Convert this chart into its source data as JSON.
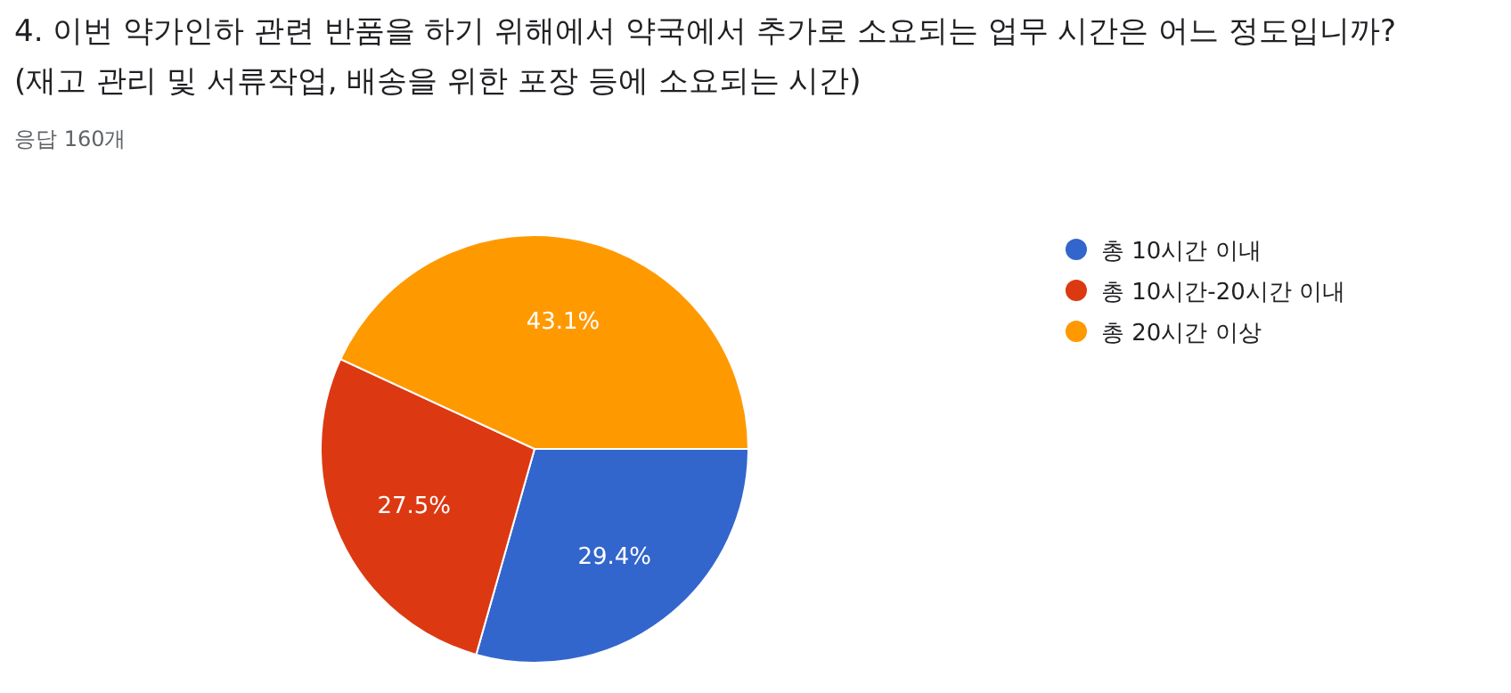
{
  "chart_data": {
    "type": "pie",
    "title": "4. 이번 약가인하 관련 반품을 하기 위해에서 약국에서 추가로 소요되는 업무 시간은 어느 정도입니까? (재고 관리 및 서류작업, 배송을 위한 포장 등에 소요되는 시간)",
    "subtitle": "응답 160개",
    "categories": [
      "총 10시간 이내",
      "총 10시간-20시간 이내",
      "총 20시간 이상"
    ],
    "values": [
      29.4,
      27.5,
      43.1
    ],
    "colors": [
      "#3366cc",
      "#dc3912",
      "#ff9900"
    ],
    "value_labels": [
      "29.4%",
      "27.5%",
      "43.1%"
    ],
    "legend": "right"
  }
}
